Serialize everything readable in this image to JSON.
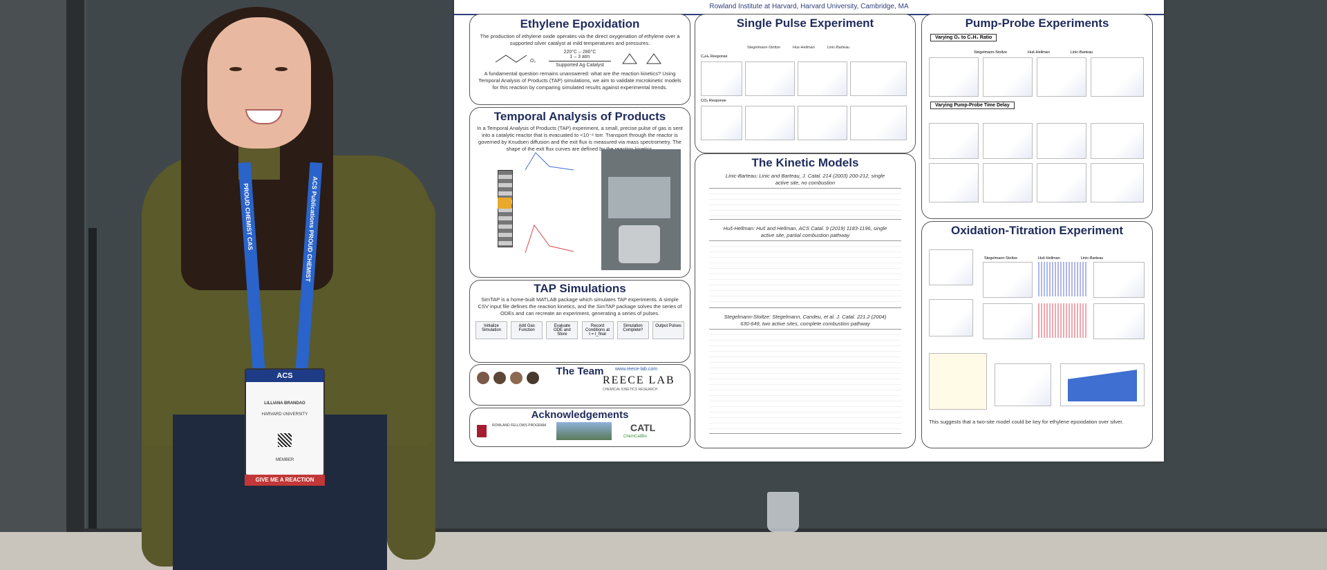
{
  "poster": {
    "header": "Rowland Institute at Harvard, Harvard University, Cambridge, MA",
    "sections": {
      "ethylene": {
        "title": "Ethylene Epoxidation",
        "intro": "The production of ethylene oxide operates via the direct oxygenation of ethylene over a supported silver catalyst at mild temperatures and pressures.",
        "conditions": "220°C – 280°C",
        "pressure": "1 – 3 atm",
        "catalyst": "Supported Ag Catalyst",
        "question": "A fundamental question remains unanswered: what are the reaction kinetics? Using Temporal Analysis of Products (TAP) simulations, we aim to validate microkinetic models for this reaction by comparing simulated results against experimental trends."
      },
      "tap": {
        "title": "Temporal Analysis of Products",
        "text": "In a Temporal Analysis of Products (TAP) experiment, a small, precise pulse of gas is sent into a catalytic reactor that is evacuated to <10⁻⁸ torr. Transport through the reactor is governed by Knudsen diffusion and the exit flux is measured via mass spectrometry. The shape of the exit flux curves are defined by the reaction kinetics."
      },
      "sim": {
        "title": "TAP Simulations",
        "text": "SimTAP is a home-built MATLAB package which simulates TAP experiments. A simple CSV input file defines the reaction kinetics, and the SimTAP package solves the series of ODEs and can recreate an experiment, generating a series of pulses.",
        "flow": [
          "Initialize Simulation",
          "Add Gas Function",
          "Evaluate ODE and Store",
          "Record Conditions at t = t_final",
          "Simulation Complete?",
          "Output Pulses"
        ]
      },
      "team": {
        "title": "The Team",
        "url": "www.reece-lab.com",
        "lab": "REECE LAB",
        "lab_sub": "CHEMICAL KINETICS RESEARCH"
      },
      "ack": {
        "title": "Acknowledgements",
        "program": "ROWLAND FELLOWS PROGRAM",
        "catl": "CATL",
        "chemcatbio": "ChemCatBio"
      },
      "single": {
        "title": "Single Pulse Experiment",
        "cols": [
          "Stegelmann-Stoltze",
          "Hus-Hellman",
          "Linic-Barteau"
        ],
        "rows": [
          "C₂H₄ Response",
          "CO₂ Response"
        ]
      },
      "kinetic": {
        "title": "The Kinetic Models",
        "models": [
          "Linic-Barteau: Linic and Barteau, J. Catal. 214 (2003) 200-212, single active site, no combustion",
          "Huš-Hellman: Huš and Hellman, ACS Catal. 9 (2019) 1183-1196, single active site, partial combustion pathway",
          "Stegelmann-Stoltze: Stegelmann, Candeu, et al. J. Catal. 221.2 (2004) 630-649, two active sites, complete combustion pathway"
        ]
      },
      "pump": {
        "title": "Pump-Probe Experiments",
        "sub1": "Varying O₂ to C₂H₄ Ratio",
        "sub2": "Varying Pump-Probe Time Delay",
        "cols": [
          "Stegelmann-Stoltze",
          "Huš-Hellman",
          "Linic-Barteau"
        ]
      },
      "ox": {
        "title": "Oxidation-Titration Experiment",
        "conclusion": "This suggests that a two-site model could be key for ethylene epoxidation over silver.",
        "cols": [
          "Stegelmann-Stoltze",
          "Huš-Hellman",
          "Linic-Barteau"
        ]
      }
    }
  },
  "badge": {
    "header": "ACS",
    "name": "LILLIANA BRANDAO",
    "org": "HARVARD UNIVERSITY",
    "role": "MEMBER",
    "footer": "GIVE ME A REACTION"
  },
  "lanyard": {
    "left": "PROUD CHEMIST  CAS",
    "right": "ACS Publications  PROUD CHEMIST"
  },
  "colors": {
    "lanyard": "#2a63c9",
    "sweater": "#5a5a2a",
    "poster_title": "#1f2b5c"
  }
}
